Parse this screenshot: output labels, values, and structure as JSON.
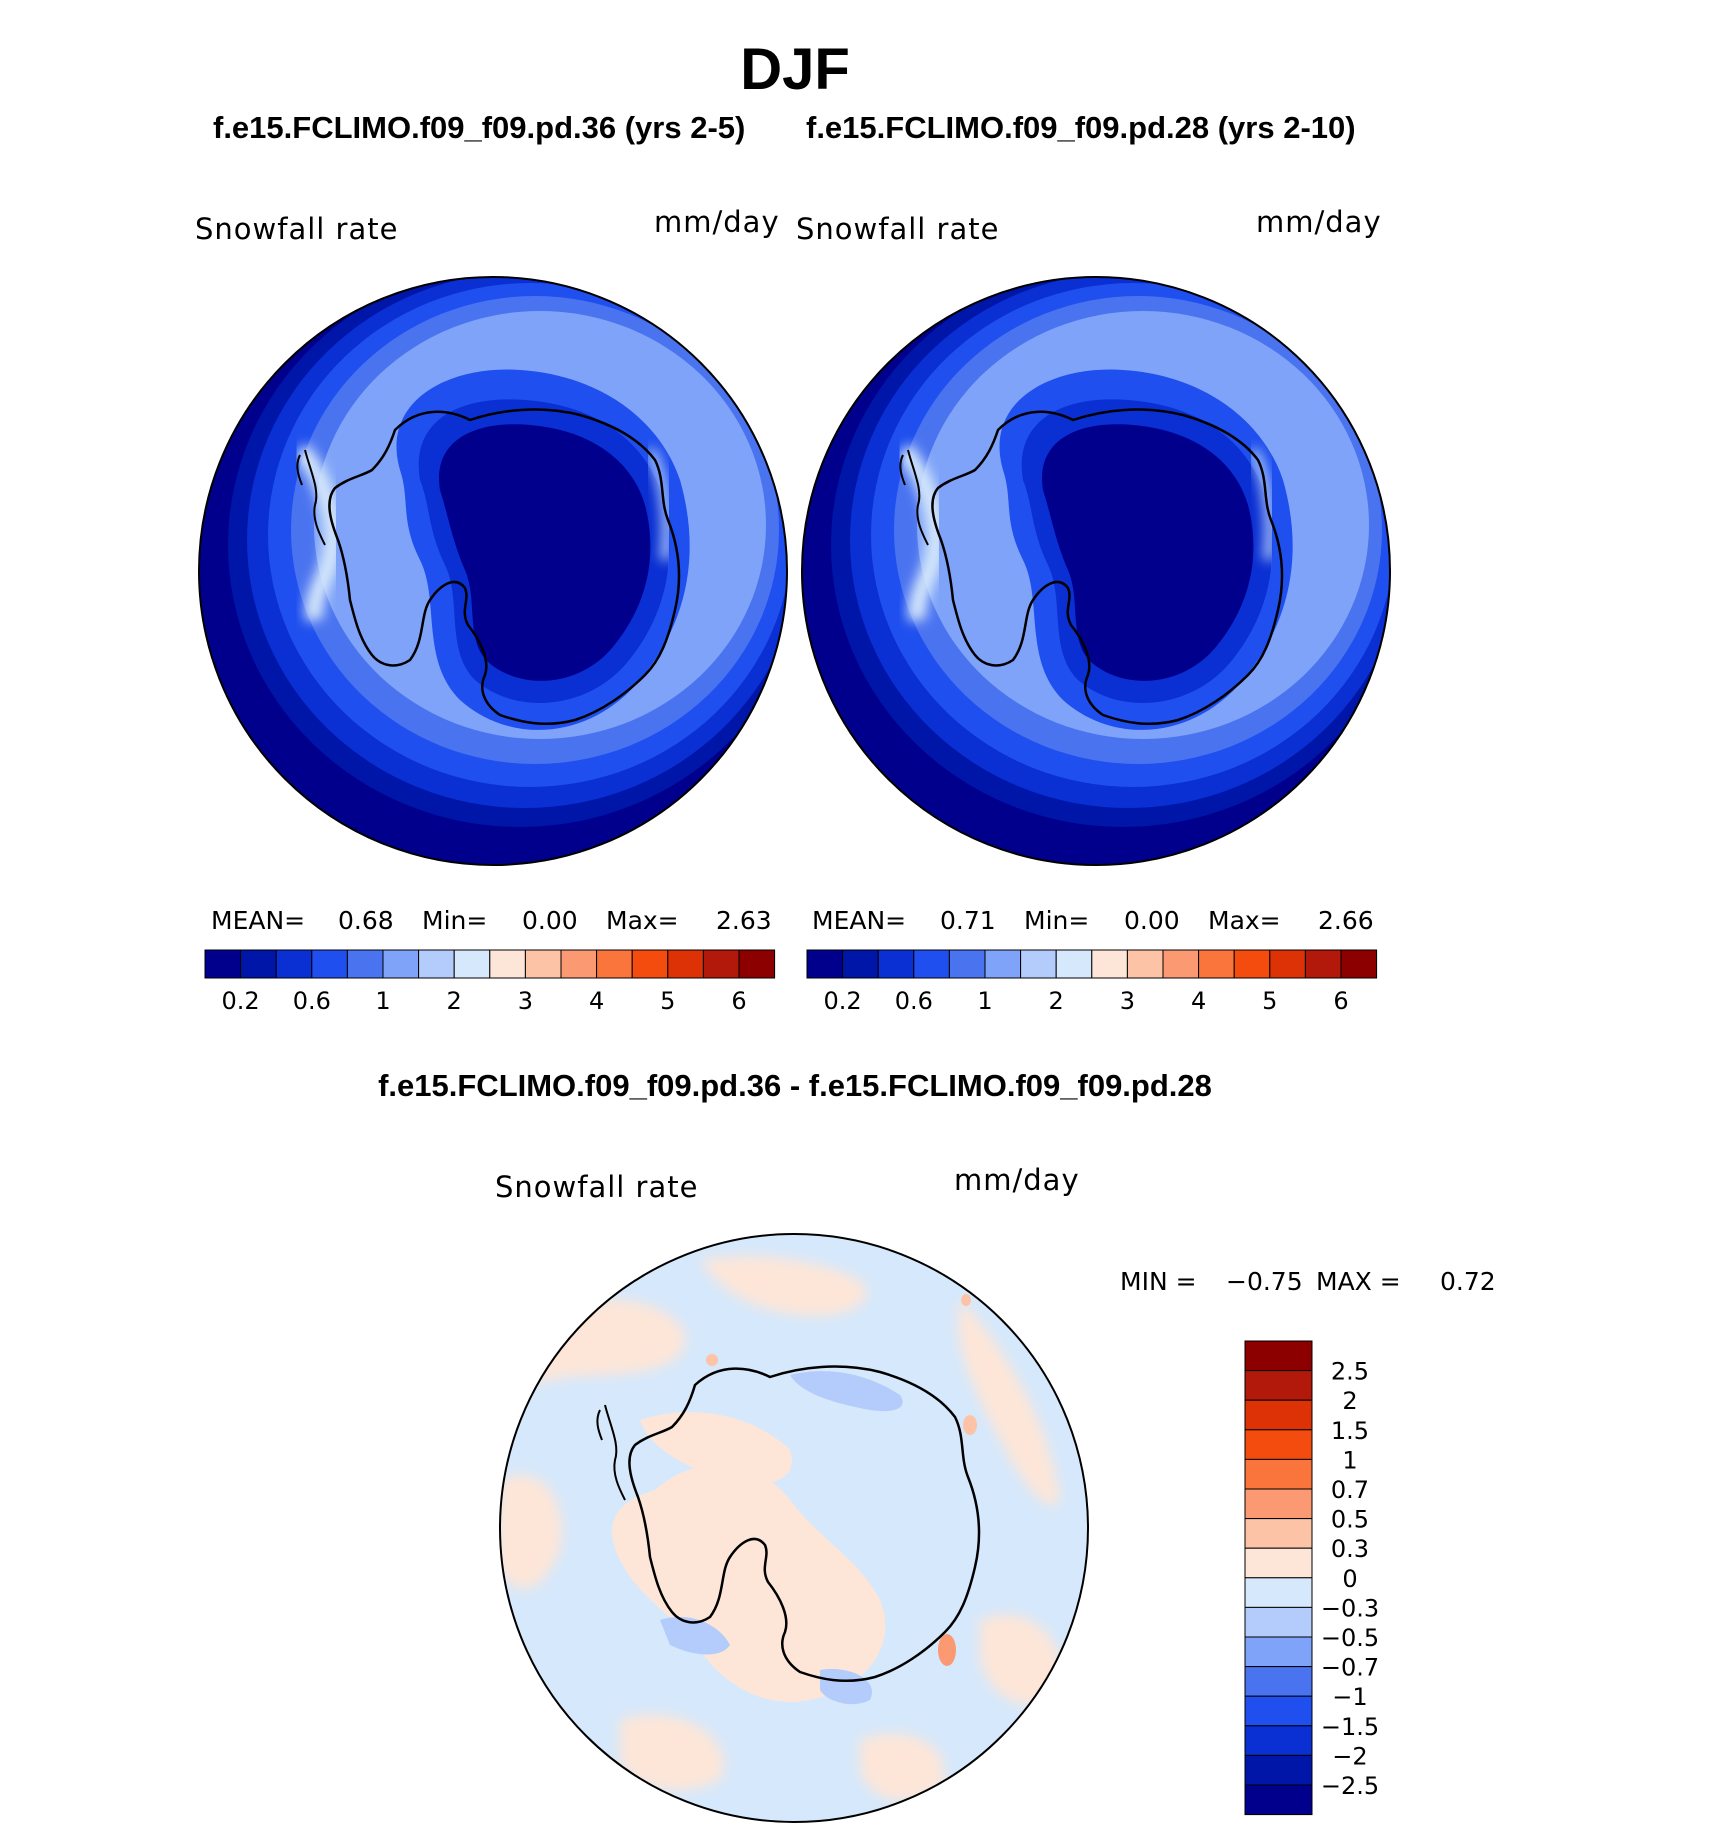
{
  "figure": {
    "title": "DJF",
    "case_a": "f.e15.FCLIMO.f09_f09.pd.36 (yrs 2-5)",
    "case_b": "f.e15.FCLIMO.f09_f09.pd.28 (yrs 2-10)",
    "diff_title": "f.e15.FCLIMO.f09_f09.pd.36 - f.e15.FCLIMO.f09_f09.pd.28"
  },
  "chart_data": [
    {
      "type": "heatmap",
      "projection": "south polar stereographic",
      "variable": "Snowfall rate",
      "units": "mm/day",
      "stats": {
        "mean_label": "MEAN=",
        "mean": "0.68",
        "min_label": "Min=",
        "min": "0.00",
        "max_label": "Max=",
        "max": "2.63"
      },
      "colorbar_ticks": [
        "0.2",
        "0.6",
        "1",
        "2",
        "3",
        "4",
        "5",
        "6"
      ]
    },
    {
      "type": "heatmap",
      "projection": "south polar stereographic",
      "variable": "Snowfall rate",
      "units": "mm/day",
      "stats": {
        "mean_label": "MEAN=",
        "mean": "0.71",
        "min_label": "Min=",
        "min": "0.00",
        "max_label": "Max=",
        "max": "2.66"
      },
      "colorbar_ticks": [
        "0.2",
        "0.6",
        "1",
        "2",
        "3",
        "4",
        "5",
        "6"
      ]
    },
    {
      "type": "heatmap",
      "projection": "south polar stereographic",
      "variable": "Snowfall rate",
      "units": "mm/day",
      "stats": {
        "min_label": "MIN =",
        "min": "−0.75",
        "max_label": "MAX =",
        "max": "0.72"
      },
      "colorbar_ticks": [
        "2.5",
        "2",
        "1.5",
        "1",
        "0.7",
        "0.5",
        "0.3",
        "0",
        "−0.3",
        "−0.5",
        "−0.7",
        "−1",
        "−1.5",
        "−2",
        "−2.5"
      ]
    }
  ],
  "palette": {
    "abs": [
      "#00008c",
      "#0016a8",
      "#0a2fd2",
      "#1f4fee",
      "#4a73f0",
      "#7ea3f8",
      "#b3ccfb",
      "#d6e8fb",
      "#fde6d8",
      "#fcc3a7",
      "#fb9a72",
      "#f9753c",
      "#f44c0e",
      "#dd3206",
      "#b2190a",
      "#8c0000"
    ],
    "diff": [
      "#8c0000",
      "#b2190a",
      "#dd3206",
      "#f44c0e",
      "#f9753c",
      "#fb9a72",
      "#fcc3a7",
      "#fde6d8",
      "#d6e8fb",
      "#b3ccfb",
      "#7ea3f8",
      "#4a73f0",
      "#1f4fee",
      "#0a2fd2",
      "#0016a8",
      "#00008c"
    ]
  }
}
